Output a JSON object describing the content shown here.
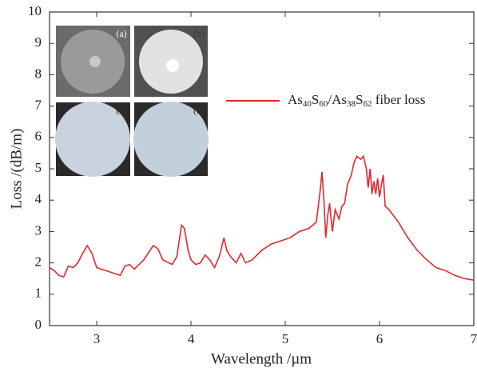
{
  "chart_data": {
    "type": "line",
    "xlabel": "Wavelength /µm",
    "ylabel": "Loss /(dB/m)",
    "xlim": [
      2.5,
      7
    ],
    "ylim": [
      0,
      10
    ],
    "xticks": [
      3,
      4,
      5,
      6,
      7
    ],
    "yticks": [
      0,
      1,
      2,
      3,
      4,
      5,
      6,
      7,
      8,
      9,
      10
    ],
    "inset_labels": [
      "(a)",
      "(b)",
      "(c)",
      "(d)"
    ],
    "series": [
      {
        "name": "As40S60/As38S62 fiber loss",
        "color": "#e0282e",
        "x": [
          2.5,
          2.55,
          2.6,
          2.65,
          2.7,
          2.75,
          2.8,
          2.85,
          2.9,
          2.95,
          3.0,
          3.1,
          3.2,
          3.25,
          3.3,
          3.35,
          3.4,
          3.5,
          3.6,
          3.65,
          3.7,
          3.8,
          3.85,
          3.9,
          3.93,
          3.97,
          4.0,
          4.05,
          4.1,
          4.15,
          4.2,
          4.25,
          4.3,
          4.35,
          4.38,
          4.42,
          4.48,
          4.53,
          4.58,
          4.65,
          4.75,
          4.85,
          4.95,
          5.05,
          5.15,
          5.25,
          5.33,
          5.37,
          5.39,
          5.41,
          5.43,
          5.45,
          5.47,
          5.5,
          5.53,
          5.57,
          5.6,
          5.63,
          5.66,
          5.7,
          5.73,
          5.76,
          5.8,
          5.83,
          5.86,
          5.88,
          5.9,
          5.92,
          5.94,
          5.96,
          5.98,
          6.0,
          6.02,
          6.04,
          6.06,
          6.1,
          6.2,
          6.3,
          6.4,
          6.5,
          6.6,
          6.7,
          6.8,
          6.9,
          7.0
        ],
        "values": [
          1.85,
          1.75,
          1.6,
          1.55,
          1.9,
          1.85,
          2.0,
          2.3,
          2.55,
          2.3,
          1.85,
          1.75,
          1.65,
          1.6,
          1.9,
          1.95,
          1.8,
          2.1,
          2.55,
          2.45,
          2.1,
          1.95,
          2.2,
          3.2,
          3.1,
          2.4,
          2.1,
          1.95,
          2.0,
          2.25,
          2.1,
          1.85,
          2.2,
          2.8,
          2.4,
          2.2,
          2.0,
          2.3,
          2.0,
          2.1,
          2.4,
          2.6,
          2.7,
          2.8,
          3.0,
          3.1,
          3.3,
          4.3,
          4.9,
          4.0,
          2.8,
          3.5,
          3.9,
          3.0,
          3.7,
          3.4,
          3.8,
          3.9,
          4.5,
          4.8,
          5.2,
          5.4,
          5.3,
          5.4,
          5.0,
          4.4,
          5.0,
          4.2,
          4.6,
          4.2,
          4.7,
          4.1,
          4.5,
          4.8,
          3.8,
          3.7,
          3.3,
          2.8,
          2.4,
          2.1,
          1.85,
          1.75,
          1.6,
          1.5,
          1.45
        ]
      }
    ]
  }
}
